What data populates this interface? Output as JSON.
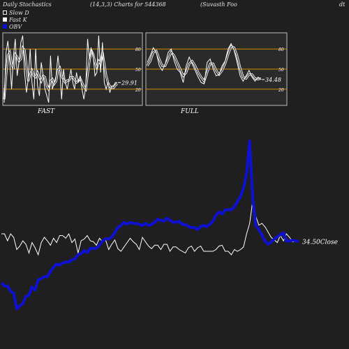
{
  "header": {
    "left": "Daily Stochastics",
    "params": "(14,3,3) Charts for 544368",
    "company": "(Suvasth Foo",
    "company_tail": "dt"
  },
  "legend": [
    {
      "label": "Slow D",
      "color": "#ffffff",
      "style": "outline"
    },
    {
      "label": "Fast K",
      "color": "#ffffff",
      "style": "filled"
    },
    {
      "label": "OBV",
      "color": "#1010d0",
      "style": "filled"
    }
  ],
  "colors": {
    "background": "#1f1f1f",
    "panel": "#2a2a2a",
    "level_line": "#d08a00",
    "line": "#ffffff",
    "obv": "#1010d0"
  },
  "chart_data": [
    {
      "type": "line",
      "name": "FAST",
      "ylim": [
        0,
        100
      ],
      "levels": [
        20,
        50,
        80
      ],
      "tick_labels": [
        "80",
        "50",
        "20"
      ],
      "last_value_label": "29.91",
      "series": [
        {
          "name": "Fast K",
          "values": [
            0,
            75,
            92,
            60,
            20,
            70,
            95,
            40,
            60,
            90,
            100,
            45,
            15,
            35,
            80,
            30,
            5,
            80,
            25,
            10,
            60,
            40,
            20,
            10,
            0,
            70,
            20,
            30,
            40,
            70,
            45,
            5,
            50,
            30,
            20,
            35,
            50,
            30,
            20,
            45,
            30,
            40,
            20,
            5,
            25,
            95,
            65,
            80,
            70,
            40,
            45,
            100,
            45,
            90,
            30,
            20,
            30,
            15,
            25,
            25,
            30,
            29.91
          ]
        },
        {
          "name": "Slow D",
          "values": [
            5,
            40,
            70,
            75,
            58,
            50,
            72,
            68,
            62,
            65,
            82,
            78,
            55,
            32,
            42,
            48,
            40,
            38,
            45,
            38,
            32,
            40,
            38,
            25,
            20,
            32,
            35,
            28,
            32,
            48,
            52,
            40,
            34,
            30,
            33,
            33,
            38,
            38,
            34,
            30,
            32,
            36,
            30,
            24,
            20,
            42,
            62,
            78,
            72,
            60,
            52,
            62,
            58,
            75,
            58,
            40,
            30,
            24,
            22,
            22,
            26,
            28
          ]
        }
      ]
    },
    {
      "type": "line",
      "name": "FULL",
      "ylim": [
        0,
        100
      ],
      "levels": [
        20,
        50,
        80
      ],
      "tick_labels": [
        "80",
        "50",
        "20"
      ],
      "last_value_label": "34.48",
      "series": [
        {
          "name": "Fast K",
          "values": [
            60,
            70,
            82,
            75,
            55,
            48,
            58,
            75,
            80,
            62,
            50,
            45,
            30,
            55,
            68,
            58,
            48,
            38,
            30,
            28,
            60,
            65,
            50,
            40,
            42,
            55,
            62,
            80,
            88,
            78,
            60,
            40,
            32,
            40,
            48,
            38,
            32,
            38,
            34.48
          ]
        },
        {
          "name": "Slow D",
          "values": [
            55,
            62,
            75,
            77,
            65,
            55,
            55,
            65,
            75,
            70,
            60,
            50,
            40,
            45,
            58,
            62,
            55,
            45,
            38,
            32,
            45,
            58,
            58,
            48,
            42,
            48,
            58,
            72,
            84,
            82,
            70,
            52,
            38,
            36,
            42,
            42,
            36,
            35,
            36
          ]
        }
      ]
    },
    {
      "type": "line",
      "name": "OBV / Close",
      "last_value_label": "34.50Close",
      "series": [
        {
          "name": "OBV",
          "values": [
            100,
            97,
            97,
            92,
            90,
            75,
            78,
            80,
            87,
            88,
            96,
            93,
            103,
            104,
            106,
            106,
            111,
            115,
            118,
            117,
            119,
            120,
            120,
            122,
            123,
            127,
            128,
            131,
            129,
            133,
            133,
            133,
            136,
            140,
            142,
            142,
            144,
            148,
            153,
            155,
            158,
            156,
            158,
            157,
            157,
            156,
            155,
            157,
            155,
            156,
            158,
            161,
            160,
            159,
            162,
            160,
            158,
            158,
            159,
            156,
            156,
            154,
            153,
            153,
            151,
            154,
            155,
            154,
            156,
            159,
            165,
            168,
            166,
            170,
            170,
            170,
            173,
            178,
            183,
            191,
            205,
            236,
            181,
            155,
            151,
            146,
            140,
            137,
            139,
            142,
            144,
            146,
            148,
            140,
            140,
            141,
            140,
            140
          ]
        },
        {
          "name": "Close",
          "values": [
            60,
            60,
            52,
            60,
            56,
            42,
            46,
            52,
            48,
            38,
            50,
            44,
            36,
            50,
            56,
            52,
            47,
            55,
            50,
            58,
            58,
            55,
            60,
            50,
            54,
            38,
            52,
            54,
            58,
            52,
            51,
            47,
            55,
            51,
            53,
            42,
            48,
            53,
            43,
            40,
            45,
            50,
            55,
            51,
            48,
            42,
            56,
            51,
            46,
            43,
            47,
            47,
            42,
            48,
            48,
            40,
            45,
            45,
            42,
            40,
            38,
            44,
            46,
            40,
            44,
            46,
            40,
            40,
            40,
            40,
            42,
            46,
            47,
            40,
            40,
            36,
            42,
            40,
            42,
            45,
            60,
            72,
            98,
            80,
            70,
            72,
            68,
            62,
            56,
            53,
            50,
            58,
            52,
            60,
            56,
            51,
            51,
            51
          ]
        }
      ]
    }
  ]
}
